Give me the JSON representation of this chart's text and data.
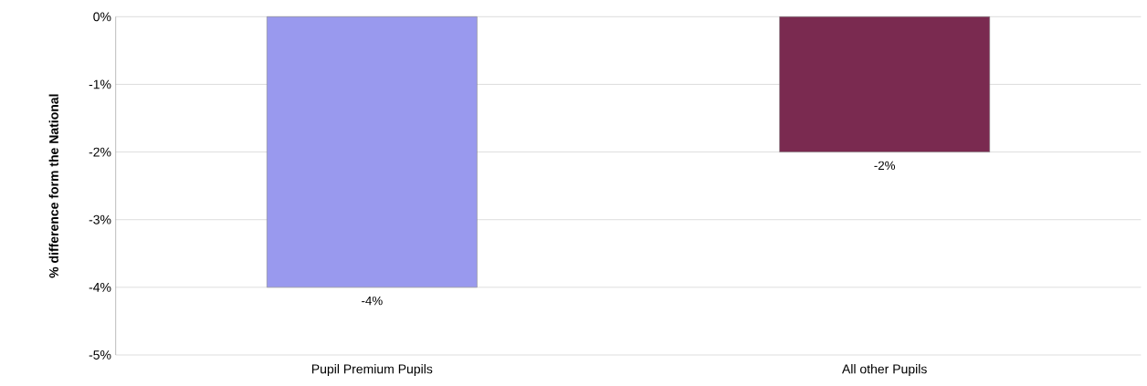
{
  "chart_data": {
    "type": "bar",
    "ylabel": "% difference form the National",
    "categories": [
      "Pupil Premium Pupils",
      "All other Pupils"
    ],
    "values": [
      -4,
      -2
    ],
    "colors": [
      "#9999ee",
      "#7a2a50"
    ],
    "value_labels": [
      "-4%",
      "-2%"
    ],
    "ylim": [
      -5,
      0
    ],
    "yticks": [
      {
        "value": -5,
        "label": "-5%"
      },
      {
        "value": -4,
        "label": "-4%"
      },
      {
        "value": -3,
        "label": "-3%"
      },
      {
        "value": -2,
        "label": "-2%"
      },
      {
        "value": -1,
        "label": "-1%"
      },
      {
        "value": 0,
        "label": "0%"
      }
    ],
    "grid": "y"
  }
}
